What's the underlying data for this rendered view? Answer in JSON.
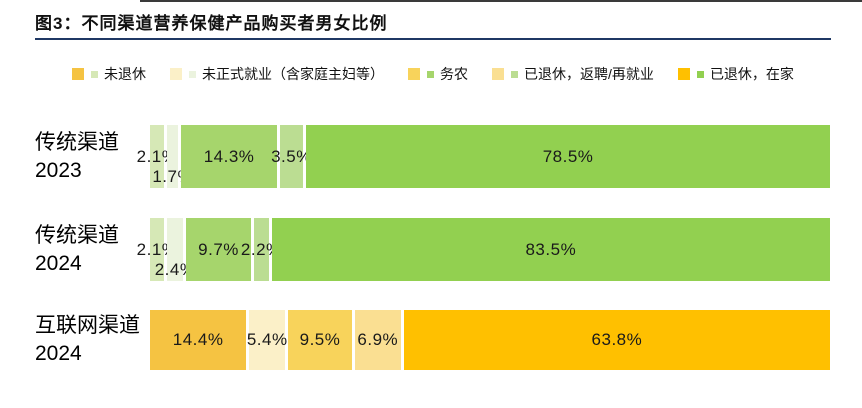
{
  "title": "图3：不同渠道营养保健产品购买者男女比例",
  "colors": {
    "divider": "#1F3864",
    "top_rule": "#3a3a3a",
    "label_text": "#1a1a1a",
    "yellow_palette": [
      "#F5C342",
      "#FBF0C8",
      "#F8D35B",
      "#FADF92",
      "#FFC000"
    ],
    "green_palette": [
      "#D6E8B6",
      "#EBF3DE",
      "#A6D56C",
      "#BBDD92",
      "#92D050"
    ]
  },
  "legend": {
    "items": [
      {
        "label": "未退休"
      },
      {
        "label": "未正式就业（含家庭主妇等）"
      },
      {
        "label": "务农"
      },
      {
        "label": "已退休，返聘/再就业"
      },
      {
        "label": "已退休，在家"
      }
    ]
  },
  "chart_data": {
    "type": "bar",
    "subtype": "horizontal-stacked-100",
    "title": "图3：不同渠道营养保健产品购买者男女比例",
    "unit": "%",
    "xlim": [
      0,
      100
    ],
    "legend_position": "top",
    "series_labels": [
      "未退休",
      "未正式就业（含家庭主妇等）",
      "务农",
      "已退休，返聘/再就业",
      "已退休，在家"
    ],
    "rows": [
      {
        "category_line1": "传统渠道",
        "category_line2": "2023",
        "palette": "green",
        "values": [
          2.1,
          1.7,
          14.3,
          3.5,
          78.5
        ],
        "labels": [
          "2.1%",
          "1.7%",
          "14.3%",
          "3.5%",
          "78.5%"
        ],
        "dropped": [
          false,
          true,
          false,
          false,
          false
        ]
      },
      {
        "category_line1": "传统渠道",
        "category_line2": "2024",
        "palette": "green",
        "values": [
          2.1,
          2.4,
          9.7,
          2.2,
          83.5
        ],
        "labels": [
          "2.1%",
          "2.4%",
          "9.7%",
          "2.2%",
          "83.5%"
        ],
        "dropped": [
          false,
          true,
          false,
          false,
          false
        ]
      },
      {
        "category_line1": "互联网渠道",
        "category_line2": "2024",
        "palette": "yellow",
        "values": [
          14.4,
          5.4,
          9.5,
          6.9,
          63.8
        ],
        "labels": [
          "14.4%",
          "5.4%",
          "9.5%",
          "6.9%",
          "63.8%"
        ],
        "dropped": [
          false,
          false,
          false,
          false,
          false
        ]
      }
    ]
  }
}
